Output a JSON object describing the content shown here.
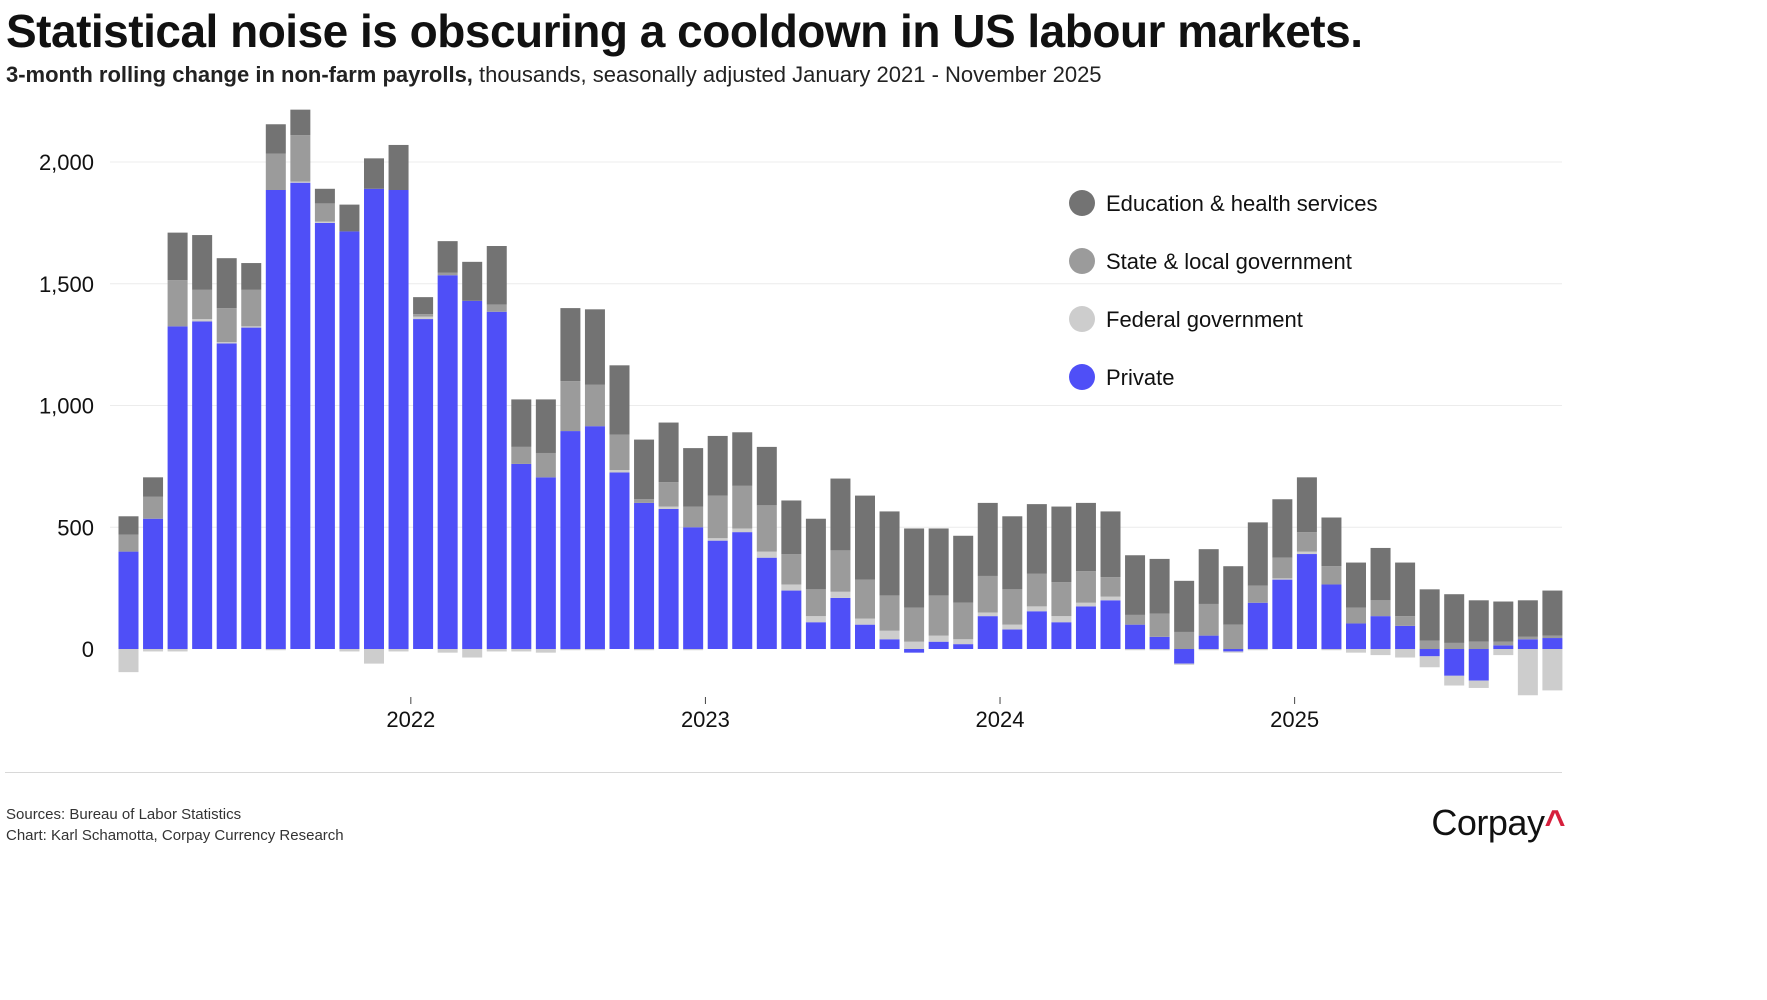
{
  "header": {
    "title": "Statistical noise is obscuring a cooldown in US labour markets.",
    "subtitle_bold": "3-month rolling change in non-farm payrolls,",
    "subtitle_rest": " thousands, seasonally adjusted January 2021 - November 2025"
  },
  "colors": {
    "private": "#4f4ff7",
    "federal": "#cdcdcd",
    "state_local": "#9b9b9b",
    "education_health": "#737373",
    "gridline": "#ececec",
    "logo_accent": "#d61f3c"
  },
  "chart_data": {
    "type": "bar",
    "stacked": true,
    "title": "Statistical noise is obscuring a cooldown in US labour markets.",
    "ylabel": "thousands",
    "ylim": [
      -200,
      2200
    ],
    "yticks": [
      0,
      500,
      1000,
      1500,
      2000
    ],
    "ytick_labels": [
      "0",
      "500",
      "1,000",
      "1,500",
      "2,000"
    ],
    "xtick_labels": [
      {
        "label": "2022",
        "index": 12
      },
      {
        "label": "2023",
        "index": 24
      },
      {
        "label": "2024",
        "index": 36
      },
      {
        "label": "2025",
        "index": 48
      }
    ],
    "categories": [
      "2021-01",
      "2021-02",
      "2021-03",
      "2021-04",
      "2021-05",
      "2021-06",
      "2021-07",
      "2021-08",
      "2021-09",
      "2021-10",
      "2021-11",
      "2021-12",
      "2022-01",
      "2022-02",
      "2022-03",
      "2022-04",
      "2022-05",
      "2022-06",
      "2022-07",
      "2022-08",
      "2022-09",
      "2022-10",
      "2022-11",
      "2022-12",
      "2023-01",
      "2023-02",
      "2023-03",
      "2023-04",
      "2023-05",
      "2023-06",
      "2023-07",
      "2023-08",
      "2023-09",
      "2023-10",
      "2023-11",
      "2023-12",
      "2024-01",
      "2024-02",
      "2024-03",
      "2024-04",
      "2024-05",
      "2024-06",
      "2024-07",
      "2024-08",
      "2024-09",
      "2024-10",
      "2024-11",
      "2024-12",
      "2025-01",
      "2025-02",
      "2025-03",
      "2025-04",
      "2025-05",
      "2025-06",
      "2025-07",
      "2025-08",
      "2025-09",
      "2025-10",
      "2025-11"
    ],
    "series": [
      {
        "name": "Private",
        "color_key": "private",
        "values": [
          400,
          535,
          1325,
          1345,
          1255,
          1320,
          1885,
          1915,
          1750,
          1715,
          1890,
          1885,
          1355,
          1535,
          1430,
          1385,
          760,
          705,
          895,
          915,
          725,
          600,
          575,
          500,
          445,
          480,
          375,
          240,
          110,
          210,
          100,
          40,
          -15,
          30,
          20,
          135,
          80,
          155,
          110,
          175,
          200,
          100,
          50,
          -60,
          55,
          -10,
          190,
          285,
          390,
          265,
          105,
          135,
          95,
          -30,
          -110,
          -130,
          15,
          40,
          45
        ]
      },
      {
        "name": "Federal government",
        "color_key": "federal",
        "values": [
          -95,
          -10,
          -10,
          10,
          5,
          5,
          -5,
          5,
          5,
          -10,
          -60,
          -10,
          10,
          -15,
          -35,
          -10,
          -10,
          -15,
          -5,
          -5,
          10,
          -5,
          10,
          -5,
          10,
          15,
          25,
          25,
          25,
          25,
          25,
          35,
          30,
          25,
          20,
          15,
          20,
          20,
          25,
          15,
          15,
          -5,
          -5,
          -5,
          -5,
          -5,
          -5,
          5,
          10,
          -5,
          -15,
          -25,
          -35,
          -45,
          -40,
          -30,
          -25,
          -190,
          -170
        ]
      },
      {
        "name": "State & local government",
        "color_key": "state_local",
        "values": [
          70,
          90,
          190,
          120,
          140,
          150,
          150,
          190,
          75,
          0,
          0,
          0,
          10,
          10,
          0,
          30,
          70,
          100,
          205,
          170,
          145,
          15,
          100,
          85,
          175,
          175,
          190,
          125,
          110,
          170,
          160,
          145,
          140,
          165,
          150,
          150,
          145,
          135,
          140,
          130,
          80,
          40,
          95,
          70,
          130,
          100,
          70,
          85,
          80,
          75,
          65,
          65,
          40,
          35,
          25,
          30,
          15,
          10,
          10
        ]
      },
      {
        "name": "Education & health services",
        "color_key": "education_health",
        "values": [
          75,
          80,
          195,
          225,
          205,
          110,
          120,
          105,
          60,
          110,
          125,
          185,
          70,
          130,
          160,
          240,
          195,
          220,
          300,
          310,
          285,
          245,
          245,
          240,
          245,
          220,
          240,
          220,
          290,
          295,
          345,
          345,
          325,
          275,
          275,
          300,
          300,
          285,
          310,
          280,
          270,
          245,
          225,
          210,
          225,
          240,
          260,
          240,
          225,
          200,
          185,
          215,
          220,
          210,
          200,
          170,
          165,
          150,
          185
        ]
      }
    ]
  },
  "legend": {
    "items": [
      {
        "label": "Education & health services",
        "color_key": "education_health"
      },
      {
        "label": "State & local government",
        "color_key": "state_local"
      },
      {
        "label": "Federal government",
        "color_key": "federal"
      },
      {
        "label": "Private",
        "color_key": "private"
      }
    ]
  },
  "footer": {
    "sources": "Sources: Bureau of Labor Statistics",
    "credit": "Chart: Karl Schamotta, Corpay Currency Research",
    "logo_text": "Corpay",
    "logo_mark": "^"
  }
}
